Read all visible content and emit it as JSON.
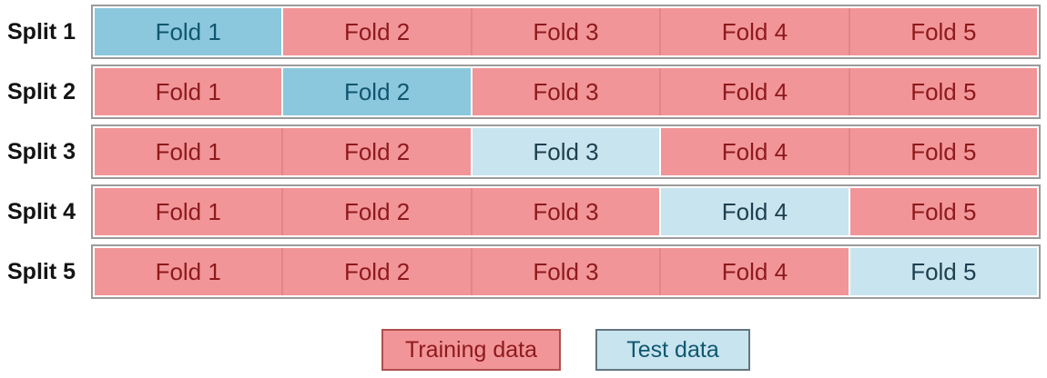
{
  "splits": [
    {
      "label": "Split 1",
      "cells": [
        {
          "label": "Fold 1",
          "type": "test",
          "shade": "dark"
        },
        {
          "label": "Fold 2",
          "type": "train"
        },
        {
          "label": "Fold 3",
          "type": "train"
        },
        {
          "label": "Fold 4",
          "type": "train"
        },
        {
          "label": "Fold 5",
          "type": "train"
        }
      ]
    },
    {
      "label": "Split 2",
      "cells": [
        {
          "label": "Fold 1",
          "type": "train"
        },
        {
          "label": "Fold 2",
          "type": "test",
          "shade": "dark"
        },
        {
          "label": "Fold 3",
          "type": "train"
        },
        {
          "label": "Fold 4",
          "type": "train"
        },
        {
          "label": "Fold 5",
          "type": "train"
        }
      ]
    },
    {
      "label": "Split 3",
      "cells": [
        {
          "label": "Fold 1",
          "type": "train"
        },
        {
          "label": "Fold 2",
          "type": "train"
        },
        {
          "label": "Fold 3",
          "type": "test",
          "shade": "light"
        },
        {
          "label": "Fold 4",
          "type": "train"
        },
        {
          "label": "Fold 5",
          "type": "train"
        }
      ]
    },
    {
      "label": "Split 4",
      "cells": [
        {
          "label": "Fold 1",
          "type": "train"
        },
        {
          "label": "Fold 2",
          "type": "train"
        },
        {
          "label": "Fold 3",
          "type": "train"
        },
        {
          "label": "Fold 4",
          "type": "test",
          "shade": "light"
        },
        {
          "label": "Fold 5",
          "type": "train"
        }
      ]
    },
    {
      "label": "Split 5",
      "cells": [
        {
          "label": "Fold 1",
          "type": "train"
        },
        {
          "label": "Fold 2",
          "type": "train"
        },
        {
          "label": "Fold 3",
          "type": "train"
        },
        {
          "label": "Fold 4",
          "type": "train"
        },
        {
          "label": "Fold 5",
          "type": "test",
          "shade": "light"
        }
      ]
    }
  ],
  "legend": [
    {
      "label": "Training data",
      "type": "train"
    },
    {
      "label": "Test data",
      "type": "test"
    }
  ],
  "colors": {
    "background": "#ffffff",
    "train_fill": "#f19598",
    "train_sep": "#e2868b",
    "train_text": "#8e191c",
    "train_border": "#b04f4d",
    "test_dark_fill": "#8bc8dd",
    "test_dark_text": "#10566f",
    "test_light_fill": "#c8e4ef",
    "test_light_text": "#1d4050",
    "test_border": "#63767f",
    "row_border": "#9b9b9b",
    "split_label_text": "#141414"
  }
}
